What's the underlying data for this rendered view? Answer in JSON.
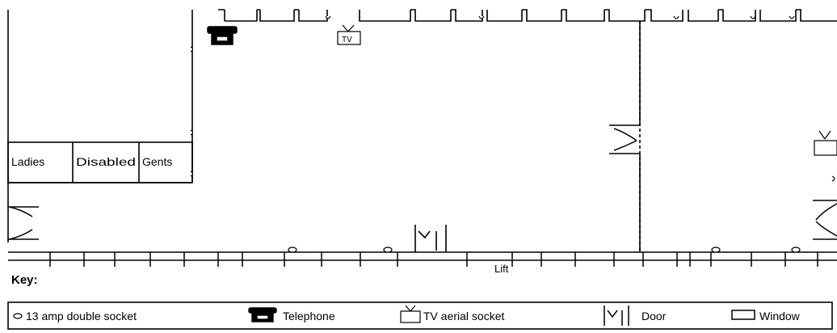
{
  "rooms": {
    "ladies": "Ladies",
    "disabled": "Disabled",
    "gents": "Gents"
  },
  "lift_label": "Lift",
  "tv_icon_text": "TV",
  "key": {
    "title": "Key:",
    "socket": "13 amp double socket",
    "telephone": "Telephone",
    "tv": "TV aerial socket",
    "door": "Door",
    "window": "Window"
  }
}
